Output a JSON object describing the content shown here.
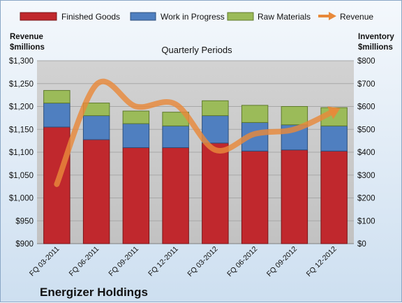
{
  "chart_data": {
    "type": "bar",
    "stacked": true,
    "subtitle": "Quarterly Periods",
    "footer_label": "Energizer Holdings",
    "categories": [
      "FQ 03-2011",
      "FQ 06-2011",
      "FQ 09-2011",
      "FQ 12-2011",
      "FQ 03-2012",
      "FQ 06-2012",
      "FQ 09-2012",
      "FQ 12-2012"
    ],
    "series": [
      {
        "name": "Finished Goods",
        "color": "#c0282d",
        "axis": "right",
        "values": [
          510,
          455,
          420,
          420,
          440,
          405,
          410,
          405
        ]
      },
      {
        "name": "Work in Progress",
        "color": "#4f7fc0",
        "axis": "right",
        "values": [
          105,
          105,
          105,
          95,
          120,
          125,
          110,
          110
        ]
      },
      {
        "name": "Raw Materials",
        "color": "#9bbb59",
        "axis": "right",
        "values": [
          55,
          55,
          55,
          60,
          65,
          75,
          80,
          80
        ]
      }
    ],
    "line_series": {
      "name": "Revenue",
      "color": "#e8893a",
      "axis": "left",
      "values": [
        1030,
        1248,
        1200,
        1205,
        1105,
        1140,
        1150,
        1190
      ]
    },
    "left_axis": {
      "label_line1": "Revenue",
      "label_line2": "$millions",
      "ylim": [
        900,
        1300
      ],
      "tick_labels": [
        "$900",
        "$950",
        "$1,000",
        "$1,050",
        "$1,100",
        "$1,150",
        "$1,200",
        "$1,250",
        "$1,300"
      ]
    },
    "right_axis": {
      "label_line1": "Inventory",
      "label_line2": "$millions",
      "ylim": [
        0,
        800
      ],
      "tick_labels": [
        "$0",
        "$100",
        "$200",
        "$300",
        "$400",
        "$500",
        "$600",
        "$700",
        "$800"
      ]
    },
    "grid": true,
    "legend_position": "top"
  }
}
